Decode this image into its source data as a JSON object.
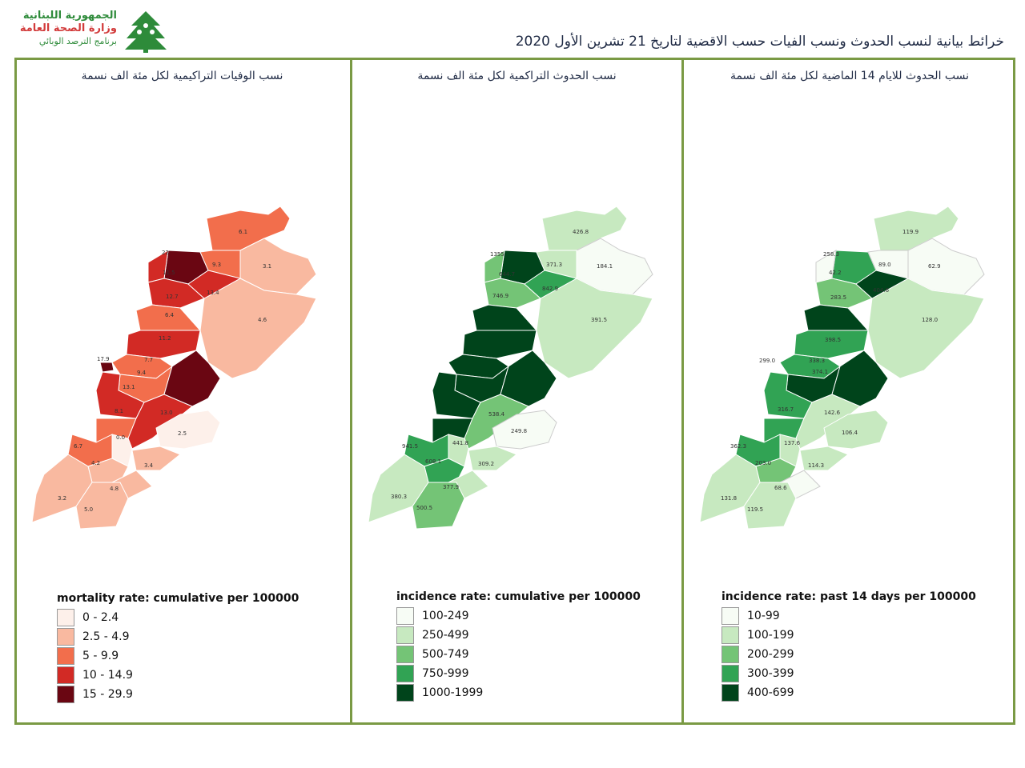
{
  "header": {
    "logo_line1": "الجمهورية اللبنانية",
    "logo_line2": "وزارة الصحة العامة",
    "logo_line3": "برنامج الترصد الوبائي",
    "title": "خرائط بيانية لنسب الحدوث ونسب الفيات حسب الاقضية لتاريخ 21 تشرين الأول 2020"
  },
  "panels": {
    "mortality": {
      "title": "نسب الوفيات التراكيمية لكل مئة الف نسمة",
      "legend_title": "mortality rate: cumulative per 100000",
      "legend": [
        {
          "label": "0 - 2.4",
          "color": "#fdf0ea"
        },
        {
          "label": "2.5 - 4.9",
          "color": "#f9b9a0"
        },
        {
          "label": "5 - 9.9",
          "color": "#f26e4c"
        },
        {
          "label": "10 - 14.9",
          "color": "#d22a25"
        },
        {
          "label": "15 - 29.9",
          "color": "#6a0612"
        }
      ],
      "values": [
        "6.1",
        "22",
        "9.3",
        "3.1",
        "11.5",
        "13.4",
        "12.7",
        "4.6",
        "6.4",
        "11.2",
        "17.9",
        "7.7",
        "9.4",
        "13.1",
        "8.1",
        "13.0",
        "0.0",
        "2.5",
        "6.7",
        "4.2",
        "3.4",
        "4.8",
        "3.2",
        "5.0"
      ]
    },
    "cumulative": {
      "title": "نسب الحدوث التراكمية لكل مئة الف نسمة",
      "legend_title": "incidence rate: cumulative per 100000",
      "legend": [
        {
          "label": "100-249",
          "color": "#f7fcf5"
        },
        {
          "label": "250-499",
          "color": "#c7e9c0"
        },
        {
          "label": "500-749",
          "color": "#74c476"
        },
        {
          "label": "750-999",
          "color": "#31a354"
        },
        {
          "label": "1000-1999",
          "color": "#00441b"
        }
      ],
      "values": [
        "426.8",
        "1355",
        "371.3",
        "184.1",
        "644.7",
        "842.9",
        "746.9",
        "391.5",
        "249.8",
        "538.4",
        "309.2",
        "941.5",
        "608.1",
        "441.8",
        "377.9",
        "380.3",
        "500.5"
      ]
    },
    "recent": {
      "title": "نسب الحدوث للايام 14 الماضية لكل مئة الف نسمة",
      "legend_title": "incidence rate: past 14 days per 100000",
      "legend": [
        {
          "label": "10-99",
          "color": "#f7fcf5"
        },
        {
          "label": "100-199",
          "color": "#c7e9c0"
        },
        {
          "label": "200-299",
          "color": "#74c476"
        },
        {
          "label": "300-399",
          "color": "#31a354"
        },
        {
          "label": "400-699",
          "color": "#00441b"
        }
      ],
      "values": [
        "119.9",
        "258.3",
        "42.2",
        "89.0",
        "62.9",
        "283.5",
        "404.6",
        "128.0",
        "398.5",
        "299.0",
        "338.3",
        "374.1",
        "316.7",
        "142.6",
        "106.4",
        "137.6",
        "362.3",
        "203.0",
        "114.3",
        "68.6",
        "131.8",
        "119.5"
      ]
    }
  }
}
